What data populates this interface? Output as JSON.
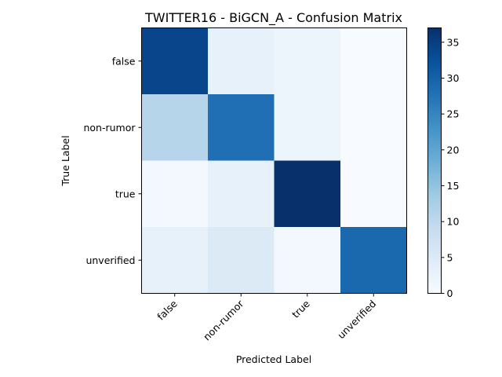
{
  "chart_data": {
    "type": "heatmap",
    "title": "TWITTER16 - BiGCN_A - Confusion Matrix",
    "xlabel": "Predicted Label",
    "ylabel": "True Label",
    "x_categories": [
      "false",
      "non-rumor",
      "true",
      "unverified"
    ],
    "y_categories": [
      "false",
      "non-rumor",
      "true",
      "unverified"
    ],
    "values": [
      [
        34,
        3,
        2,
        0
      ],
      [
        11,
        28,
        2,
        0
      ],
      [
        1,
        3,
        37,
        0
      ],
      [
        3,
        5,
        1,
        29
      ]
    ],
    "colorscale": "Blues",
    "colorbar": {
      "range": [
        0,
        37
      ],
      "ticks": [
        0,
        5,
        10,
        15,
        20,
        25,
        30,
        35
      ]
    }
  }
}
